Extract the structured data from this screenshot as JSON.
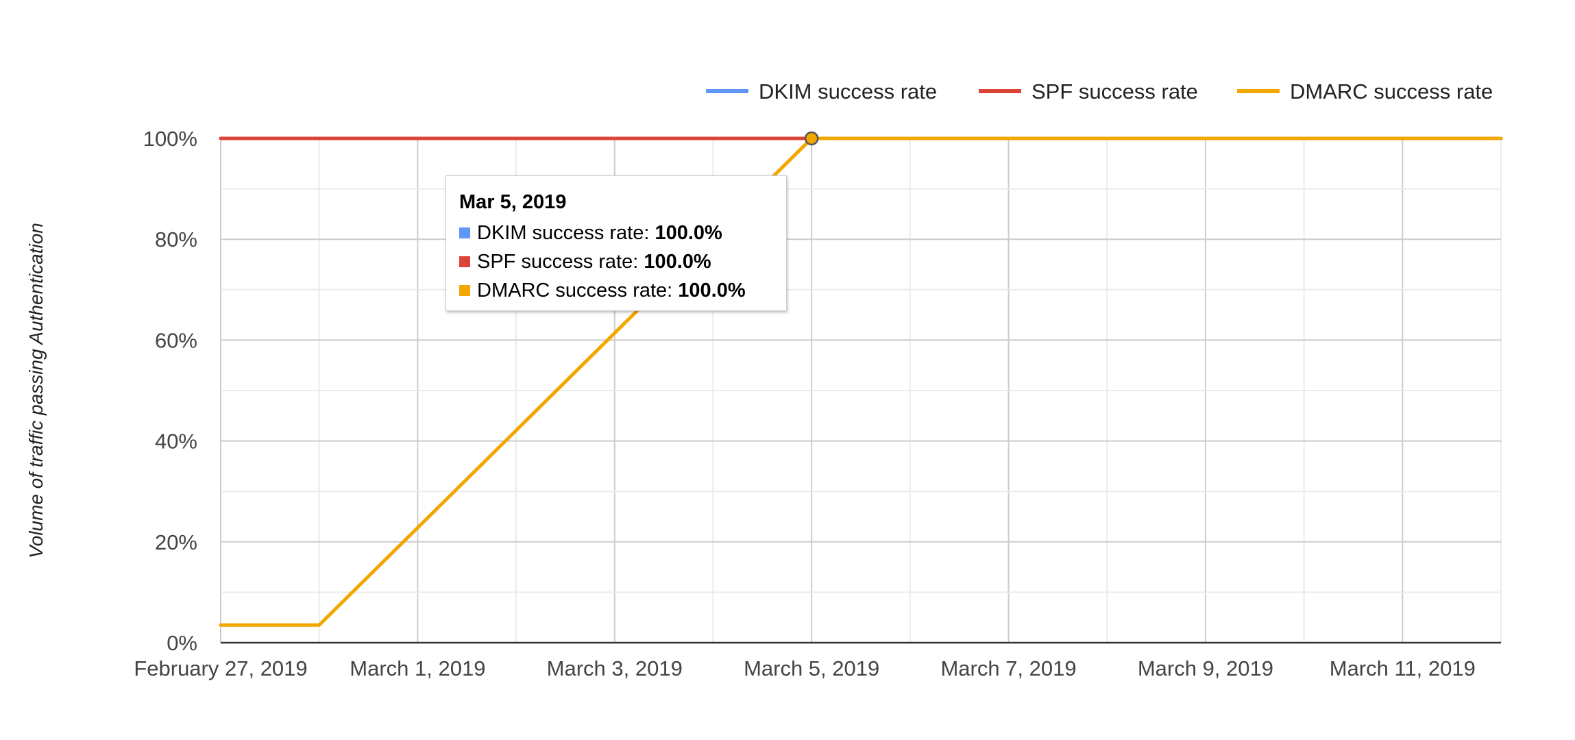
{
  "chart_data": {
    "type": "line",
    "ylabel": "Volume of traffic passing Authentication",
    "ylim": [
      0,
      100
    ],
    "y_ticks": [
      "0%",
      "20%",
      "40%",
      "60%",
      "80%",
      "100%"
    ],
    "x_start": "February 27, 2019",
    "x_end": "March 12, 2019",
    "x_tick_labels": [
      "February 27, 2019",
      "March 1, 2019",
      "March 3, 2019",
      "March 5, 2019",
      "March 7, 2019",
      "March 9, 2019",
      "March 11, 2019"
    ],
    "x": [
      "February 27, 2019",
      "February 28, 2019",
      "March 1, 2019",
      "March 2, 2019",
      "March 3, 2019",
      "March 4, 2019",
      "March 5, 2019",
      "March 6, 2019",
      "March 7, 2019",
      "March 8, 2019",
      "March 9, 2019",
      "March 10, 2019",
      "March 11, 2019",
      "March 12, 2019"
    ],
    "series": [
      {
        "name": "DKIM success rate",
        "color": "#5e97f6",
        "values": [
          100,
          100,
          100,
          100,
          100,
          100,
          100,
          100,
          100,
          100,
          100,
          100,
          100,
          100
        ]
      },
      {
        "name": "SPF success rate",
        "color": "#db4437",
        "values": [
          100,
          100,
          100,
          100,
          100,
          100,
          100,
          100,
          100,
          100,
          100,
          100,
          100,
          100
        ]
      },
      {
        "name": "DMARC success rate",
        "color": "#f2a600",
        "values": [
          3.5,
          3.5,
          null,
          null,
          null,
          null,
          100,
          100,
          100,
          100,
          100,
          100,
          100,
          100
        ]
      }
    ],
    "legend_position": "top-right",
    "grid": true
  },
  "tooltip": {
    "title": "Mar 5, 2019",
    "rows": [
      {
        "label": "DKIM success rate: ",
        "value": "100.0%",
        "color": "#5e97f6"
      },
      {
        "label": "SPF success rate: ",
        "value": "100.0%",
        "color": "#db4437"
      },
      {
        "label": "DMARC success rate: ",
        "value": "100.0%",
        "color": "#f2a600"
      }
    ]
  }
}
